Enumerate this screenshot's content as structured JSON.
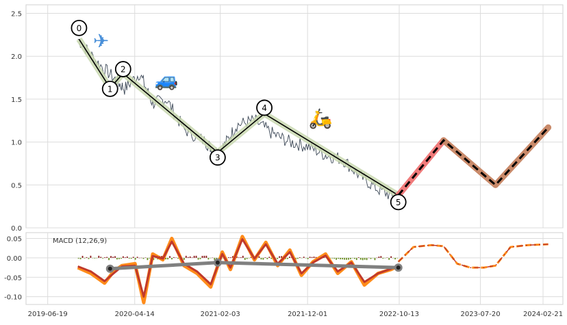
{
  "chart_data": [
    {
      "type": "line",
      "panel": "price",
      "ylim": [
        0,
        2.6
      ],
      "y_ticks": [
        "0.0",
        "0.5",
        "1.0",
        "1.5",
        "2.0",
        "2.5"
      ],
      "y_tick_values": [
        0,
        0.5,
        1.0,
        1.5,
        2.0,
        2.5
      ],
      "grid": true,
      "series": [
        {
          "role": "price",
          "color": "#3a4655",
          "x": [
            "2019-10-01",
            "2019-12-01",
            "2020-02-01",
            "2020-03-10",
            "2020-05-01",
            "2020-06-15",
            "2020-08-01",
            "2020-10-01",
            "2020-12-15",
            "2021-01-15",
            "2021-02-15",
            "2021-04-01",
            "2021-06-01",
            "2021-08-01",
            "2021-10-01",
            "2021-12-01",
            "2022-02-01",
            "2022-04-01",
            "2022-06-01",
            "2022-08-01",
            "2022-10-01"
          ],
          "y": [
            2.2,
            1.95,
            1.75,
            1.62,
            1.8,
            1.45,
            1.5,
            1.15,
            1.0,
            0.88,
            0.95,
            1.2,
            1.25,
            1.1,
            1.0,
            0.95,
            0.85,
            0.8,
            0.6,
            0.45,
            0.35
          ]
        },
        {
          "role": "zigzag",
          "color": "#000000",
          "highlight": "#c9d8b0",
          "x": [
            "2019-10-05",
            "2020-01-20",
            "2020-03-05",
            "2021-01-25",
            "2021-07-05",
            "2022-10-10"
          ],
          "y": [
            2.2,
            1.63,
            1.8,
            0.88,
            1.33,
            0.38
          ]
        },
        {
          "role": "projection",
          "color": "#000000",
          "segments_colors": [
            "#f07b7b",
            "#c98a6a"
          ],
          "x": [
            "2022-10-10",
            "2023-03-15",
            "2023-09-10",
            "2024-03-10"
          ],
          "y": [
            0.38,
            1.02,
            0.5,
            1.17
          ]
        }
      ],
      "pivot_labels": [
        {
          "label": "0",
          "x": "2019-10-05",
          "y": 2.33
        },
        {
          "label": "1",
          "x": "2020-01-20",
          "y": 1.62
        },
        {
          "label": "2",
          "x": "2020-03-05",
          "y": 1.85
        },
        {
          "label": "3",
          "x": "2021-01-25",
          "y": 0.82
        },
        {
          "label": "4",
          "x": "2021-07-05",
          "y": 1.4
        },
        {
          "label": "5",
          "x": "2022-10-10",
          "y": 0.3
        }
      ],
      "emoji_markers": [
        {
          "name": "airplane",
          "glyph": "✈",
          "x": "2019-12-20",
          "y": 2.1
        },
        {
          "name": "car",
          "glyph": "🚙",
          "x": "2020-08-01",
          "y": 1.65
        },
        {
          "name": "scooter",
          "glyph": "🛵",
          "x": "2022-01-15",
          "y": 1.2
        }
      ]
    },
    {
      "type": "line",
      "panel": "macd",
      "title": "MACD (12,26,9)",
      "ylim": [
        -0.12,
        0.065
      ],
      "y_ticks": [
        "0.05",
        "0.00",
        "-0.05",
        "-0.10"
      ],
      "y_tick_values": [
        0.05,
        0.0,
        -0.05,
        -0.1
      ],
      "grid": true,
      "series": [
        {
          "role": "macd",
          "color": "#ff8c1a",
          "x": [
            "2019-10-01",
            "2019-11-15",
            "2020-01-01",
            "2020-02-01",
            "2020-03-01",
            "2020-04-15",
            "2020-05-15",
            "2020-06-15",
            "2020-07-20",
            "2020-08-20",
            "2020-10-01",
            "2020-11-15",
            "2021-01-01",
            "2021-02-10",
            "2021-03-10",
            "2021-04-20",
            "2021-06-01",
            "2021-07-10",
            "2021-08-20",
            "2021-10-01",
            "2021-11-10",
            "2021-12-20",
            "2022-02-01",
            "2022-03-15",
            "2022-05-01",
            "2022-06-15",
            "2022-08-01",
            "2022-09-15",
            "2022-10-10"
          ],
          "y": [
            -0.025,
            -0.04,
            -0.065,
            -0.035,
            -0.02,
            -0.015,
            -0.115,
            0.01,
            -0.005,
            0.05,
            -0.02,
            -0.04,
            -0.075,
            0.015,
            -0.03,
            0.055,
            -0.005,
            0.04,
            -0.02,
            0.02,
            -0.045,
            -0.01,
            0.01,
            -0.04,
            -0.01,
            -0.07,
            -0.04,
            -0.03,
            -0.02
          ]
        },
        {
          "role": "signal",
          "color": "#c0392b",
          "x": [
            "2019-10-01",
            "2019-11-15",
            "2020-01-01",
            "2020-02-01",
            "2020-03-01",
            "2020-04-15",
            "2020-05-15",
            "2020-06-15",
            "2020-07-20",
            "2020-08-20",
            "2020-10-01",
            "2020-11-15",
            "2021-01-01",
            "2021-02-10",
            "2021-03-10",
            "2021-04-20",
            "2021-06-01",
            "2021-07-10",
            "2021-08-20",
            "2021-10-01",
            "2021-11-10",
            "2021-12-20",
            "2022-02-01",
            "2022-03-15",
            "2022-05-01",
            "2022-06-15",
            "2022-08-01",
            "2022-09-15",
            "2022-10-10"
          ],
          "y": [
            -0.022,
            -0.035,
            -0.06,
            -0.04,
            -0.022,
            -0.02,
            -0.1,
            0.005,
            -0.002,
            0.042,
            -0.015,
            -0.035,
            -0.068,
            0.01,
            -0.025,
            0.048,
            -0.002,
            0.035,
            -0.015,
            0.015,
            -0.04,
            -0.012,
            0.006,
            -0.035,
            -0.012,
            -0.062,
            -0.04,
            -0.028,
            -0.02
          ]
        },
        {
          "role": "trend",
          "color": "#808080",
          "x": [
            "2020-01-20",
            "2021-01-25",
            "2022-10-10"
          ],
          "y": [
            -0.028,
            -0.012,
            -0.025
          ]
        },
        {
          "role": "projection",
          "color": "#ff8c1a",
          "x": [
            "2022-10-10",
            "2022-12-01",
            "2023-02-01",
            "2023-03-15",
            "2023-05-01",
            "2023-06-15",
            "2023-08-01",
            "2023-09-10",
            "2023-11-01",
            "2024-01-01",
            "2024-03-10"
          ],
          "y": [
            -0.01,
            0.028,
            0.033,
            0.03,
            -0.015,
            -0.025,
            -0.025,
            -0.02,
            0.028,
            0.033,
            0.035
          ]
        }
      ]
    }
  ],
  "x_axis": {
    "ticks": [
      "2019-06-19",
      "2020-04-14",
      "2021-02-03",
      "2021-12-01",
      "2022-10-13",
      "2023-07-20",
      "2024-02-21"
    ],
    "range": [
      "2019-06-19",
      "2024-04-20"
    ]
  }
}
